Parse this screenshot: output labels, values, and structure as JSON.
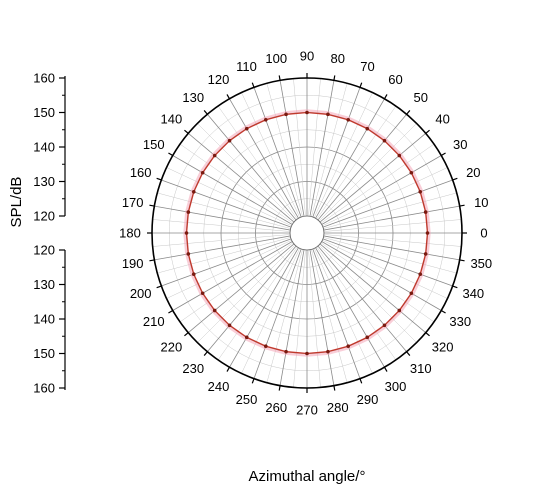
{
  "chart_data": {
    "type": "line",
    "polar": true,
    "title": "",
    "xlabel": "Azimuthal angle/°",
    "ylabel": "SPL/dB",
    "angle_ticks": [
      "0",
      "10",
      "20",
      "30",
      "40",
      "50",
      "60",
      "70",
      "80",
      "90",
      "100",
      "110",
      "120",
      "130",
      "140",
      "150",
      "160",
      "170",
      "180",
      "190",
      "200",
      "210",
      "220",
      "230",
      "240",
      "250",
      "260",
      "270",
      "280",
      "290",
      "300",
      "310",
      "320",
      "330",
      "340",
      "350"
    ],
    "radial_ticks_upper": [
      "160",
      "150",
      "140",
      "130",
      "120"
    ],
    "radial_ticks_lower": [
      "120",
      "130",
      "140",
      "150",
      "160"
    ],
    "rlim": [
      120,
      160
    ],
    "grid": true,
    "series": [
      {
        "color": "#c0392b",
        "band_color": "#f4a6b8",
        "x": [
          0,
          10,
          20,
          30,
          40,
          50,
          60,
          70,
          80,
          90,
          100,
          110,
          120,
          130,
          140,
          150,
          160,
          170,
          180,
          190,
          200,
          210,
          220,
          230,
          240,
          250,
          260,
          270,
          280,
          290,
          300,
          310,
          320,
          330,
          340,
          350
        ],
        "values": [
          150,
          150,
          150,
          150,
          150,
          150,
          150,
          150,
          150,
          150,
          150,
          150,
          150,
          150,
          150,
          150,
          150,
          150,
          150,
          150,
          150,
          150,
          150,
          150,
          150,
          150,
          150,
          150,
          150,
          150,
          150,
          150,
          150,
          150,
          150,
          150
        ]
      }
    ]
  }
}
